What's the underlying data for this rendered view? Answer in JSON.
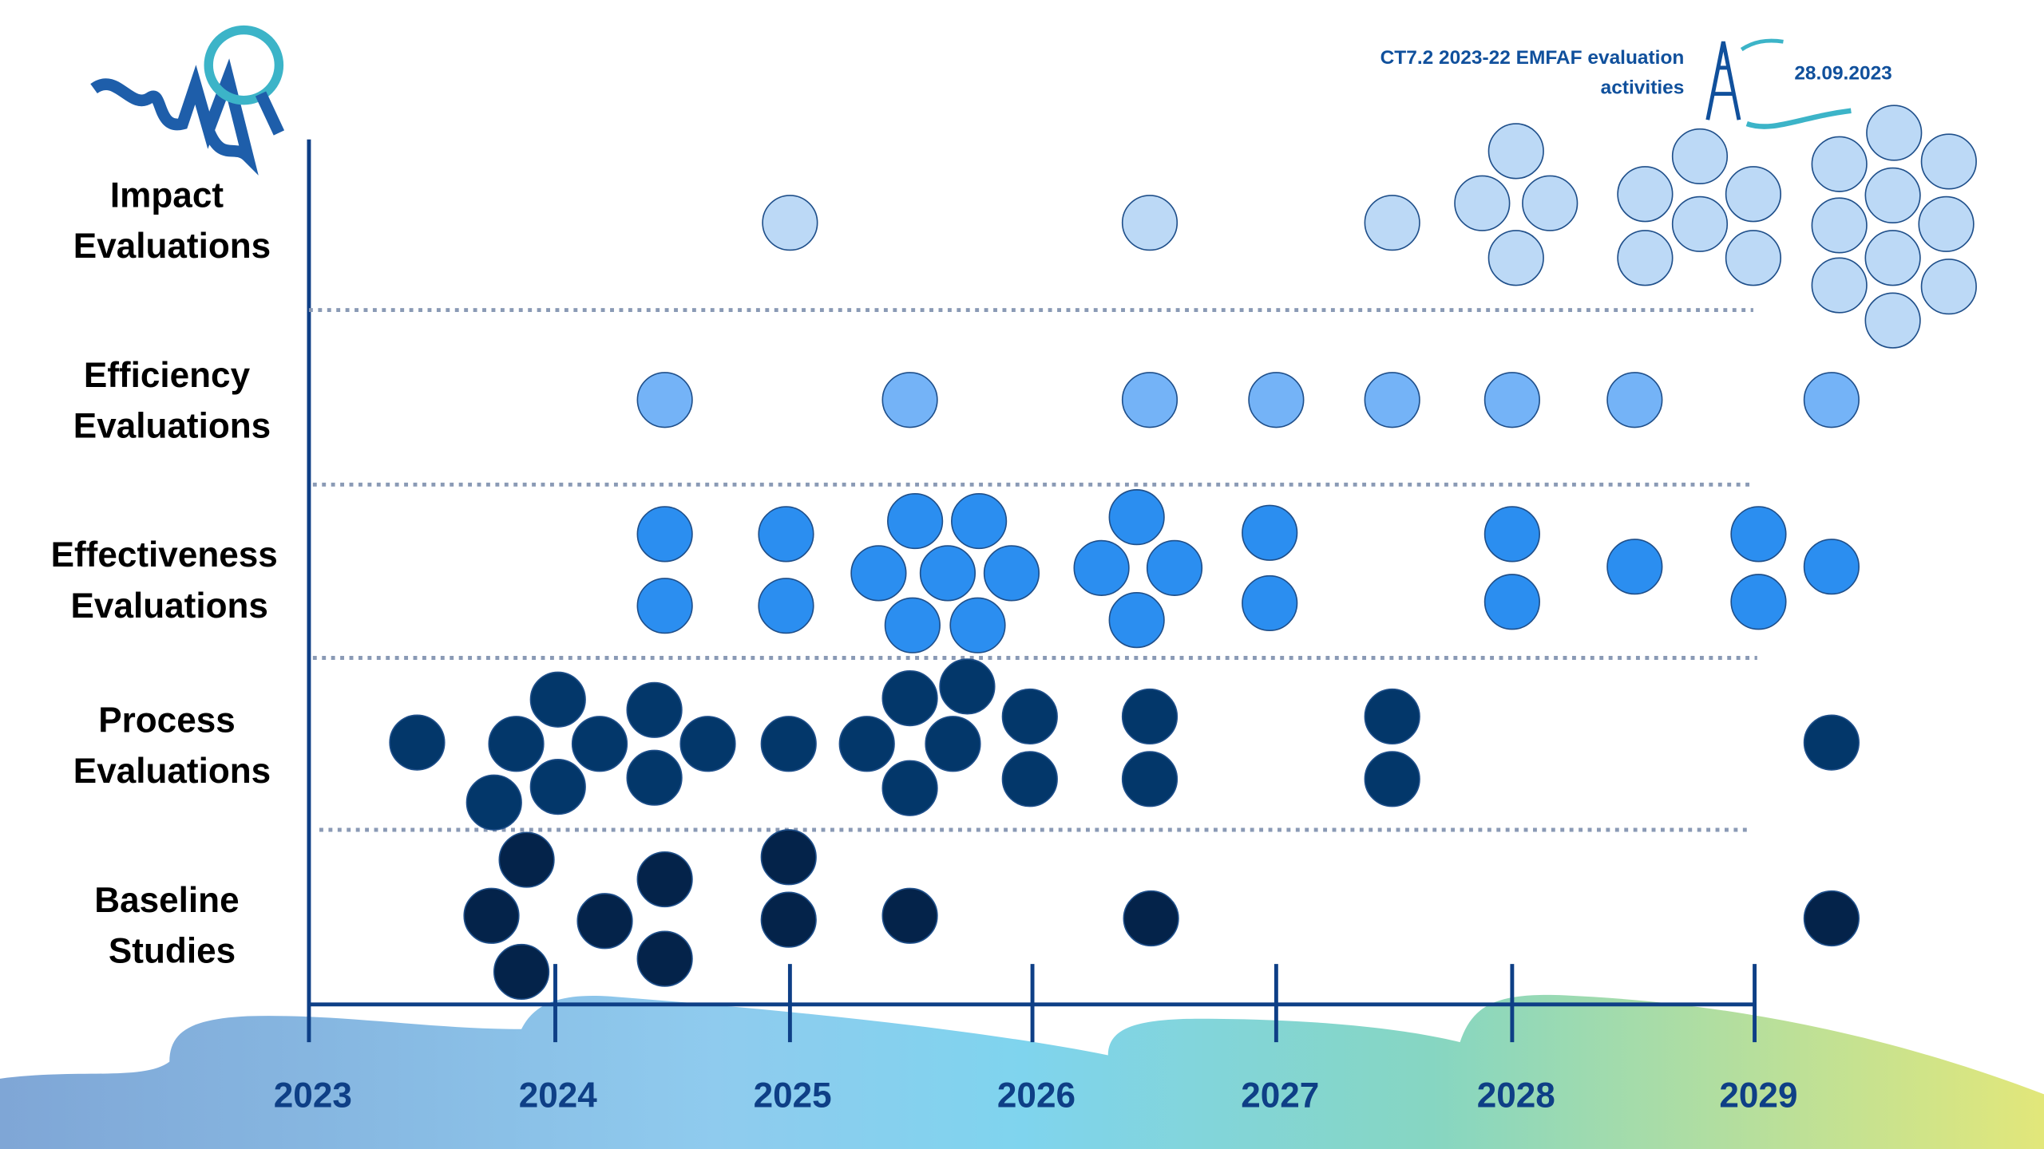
{
  "header": {
    "title_line1": "CT7.2 2023-22 EMFAF evaluation",
    "title_line2": "activities",
    "date": "28.09.2023"
  },
  "rows": [
    {
      "label_lines": [
        "Impact",
        "Evaluations"
      ]
    },
    {
      "label_lines": [
        "Efficiency",
        "Evaluations"
      ]
    },
    {
      "label_lines": [
        "Effectiveness",
        "Evaluations"
      ]
    },
    {
      "label_lines": [
        "Process",
        "Evaluations"
      ]
    },
    {
      "label_lines": [
        "Baseline",
        "Studies"
      ]
    }
  ],
  "years": [
    "2023",
    "2024",
    "2025",
    "2026",
    "2027",
    "2028",
    "2029"
  ]
}
